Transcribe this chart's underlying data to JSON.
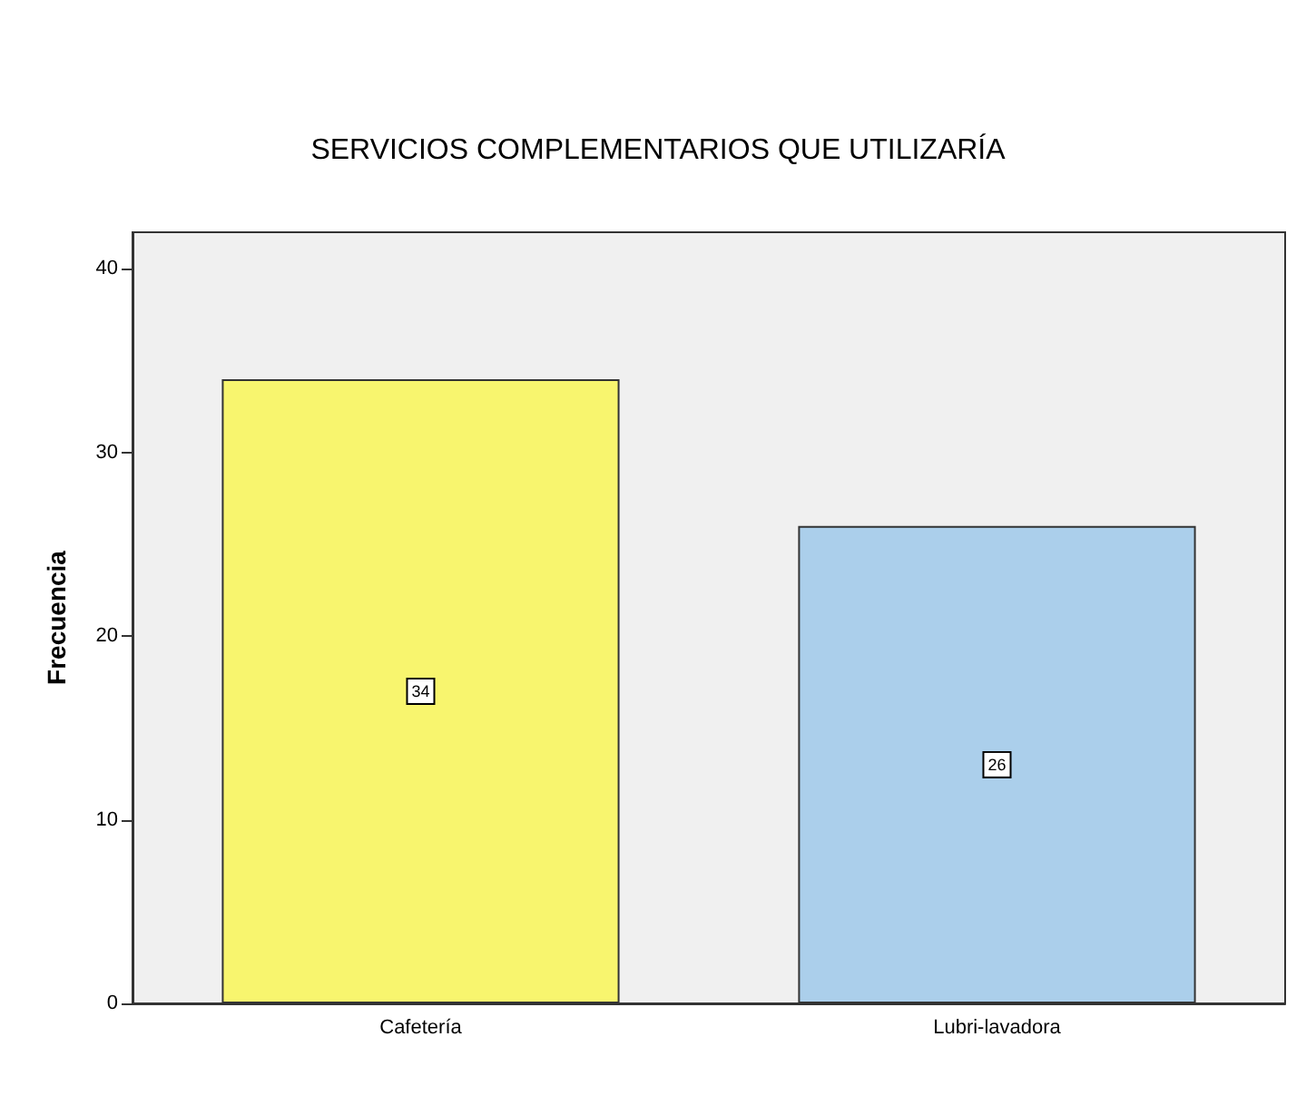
{
  "chart_data": {
    "type": "bar",
    "title": "SERVICIOS COMPLEMENTARIOS QUE UTILIZARÍA",
    "ylabel": "Frecuencia",
    "categories": [
      "Cafetería",
      "Lubri-lavadora"
    ],
    "values": [
      34,
      26
    ],
    "colors": [
      "#f8f56e",
      "#abcfeb"
    ],
    "ylim": [
      0,
      42
    ],
    "yticks": [
      0,
      10,
      20,
      30,
      40
    ],
    "grid": false,
    "data_labels": true
  }
}
